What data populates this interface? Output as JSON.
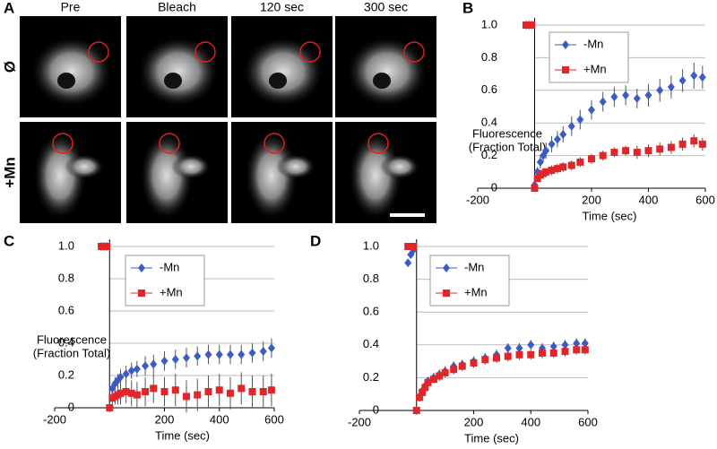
{
  "image_panel": {
    "label": "A",
    "columns": [
      "Pre",
      "Bleach",
      "120 sec",
      "300 sec"
    ],
    "rows": [
      "Ø",
      "+Mn"
    ]
  },
  "chart_data": [
    {
      "type": "scatter",
      "label": "B",
      "xlabel": "Time (sec)",
      "ylabel": [
        "Fluorescence",
        "(Fraction Total)"
      ],
      "x": [
        -30,
        -20,
        -10,
        0,
        10,
        20,
        30,
        40,
        60,
        80,
        100,
        130,
        160,
        200,
        240,
        280,
        320,
        360,
        400,
        440,
        480,
        520,
        560,
        590
      ],
      "xlim": [
        -200,
        600
      ],
      "xticks": [
        -200,
        200,
        400,
        600
      ],
      "ylim": [
        0,
        1
      ],
      "yticks": [
        0,
        0.2,
        0.4,
        0.6,
        0.8,
        {
          "value": 1,
          "label": "1.0"
        }
      ],
      "grid": true,
      "series": [
        {
          "name": "-Mn",
          "color": "#3b5cc4",
          "marker": "diamond",
          "values": [
            1,
            1,
            1,
            0.02,
            0.1,
            0.16,
            0.2,
            0.23,
            0.27,
            0.3,
            0.33,
            0.38,
            0.42,
            0.48,
            0.53,
            0.56,
            0.57,
            0.55,
            0.57,
            0.6,
            0.62,
            0.66,
            0.69,
            0.68
          ],
          "errors": [
            0.02,
            0.02,
            0.02,
            0.02,
            0.03,
            0.04,
            0.04,
            0.05,
            0.05,
            0.05,
            0.05,
            0.06,
            0.06,
            0.06,
            0.06,
            0.06,
            0.06,
            0.06,
            0.07,
            0.07,
            0.07,
            0.07,
            0.08,
            0.07
          ]
        },
        {
          "name": "+Mn",
          "color": "#e0262a",
          "marker": "square",
          "values": [
            1,
            1,
            1,
            0,
            0.06,
            0.08,
            0.09,
            0.1,
            0.11,
            0.12,
            0.13,
            0.14,
            0.16,
            0.18,
            0.2,
            0.22,
            0.23,
            0.22,
            0.23,
            0.24,
            0.25,
            0.27,
            0.29,
            0.27
          ],
          "errors": [
            0.02,
            0.02,
            0.02,
            0.01,
            0.02,
            0.02,
            0.02,
            0.02,
            0.03,
            0.03,
            0.03,
            0.03,
            0.03,
            0.03,
            0.03,
            0.03,
            0.03,
            0.04,
            0.04,
            0.04,
            0.04,
            0.04,
            0.04,
            0.04
          ]
        }
      ]
    },
    {
      "type": "scatter",
      "label": "C",
      "xlabel": "Time (sec)",
      "ylabel": [
        "Fluorescence",
        "(Fraction Total)"
      ],
      "x": [
        -30,
        -20,
        -10,
        0,
        10,
        20,
        30,
        40,
        60,
        80,
        100,
        130,
        160,
        200,
        240,
        280,
        320,
        360,
        400,
        440,
        480,
        520,
        560,
        590
      ],
      "xlim": [
        -200,
        600
      ],
      "xticks": [
        -200,
        200,
        400,
        600
      ],
      "ylim": [
        0,
        1
      ],
      "yticks": [
        0,
        0.2,
        0.4,
        0.6,
        0.8,
        {
          "value": 1,
          "label": "1.0"
        }
      ],
      "grid": true,
      "series": [
        {
          "name": "-Mn",
          "color": "#3b5cc4",
          "marker": "diamond",
          "values": [
            1,
            1,
            1,
            0,
            0.12,
            0.15,
            0.17,
            0.19,
            0.21,
            0.23,
            0.24,
            0.26,
            0.27,
            0.29,
            0.3,
            0.31,
            0.32,
            0.33,
            0.33,
            0.33,
            0.33,
            0.34,
            0.35,
            0.37
          ],
          "errors": [
            0.02,
            0.02,
            0.02,
            0.01,
            0.03,
            0.04,
            0.04,
            0.05,
            0.05,
            0.05,
            0.05,
            0.06,
            0.06,
            0.06,
            0.06,
            0.06,
            0.06,
            0.06,
            0.06,
            0.06,
            0.06,
            0.06,
            0.06,
            0.06
          ]
        },
        {
          "name": "+Mn",
          "color": "#e0262a",
          "marker": "square",
          "values": [
            1,
            1,
            1,
            0,
            0.06,
            0.07,
            0.08,
            0.09,
            0.1,
            0.09,
            0.08,
            0.1,
            0.12,
            0.1,
            0.11,
            0.07,
            0.08,
            0.1,
            0.11,
            0.09,
            0.12,
            0.1,
            0.1,
            0.11
          ],
          "errors": [
            0.02,
            0.02,
            0.02,
            0.01,
            0.04,
            0.05,
            0.06,
            0.07,
            0.07,
            0.08,
            0.08,
            0.09,
            0.09,
            0.09,
            0.1,
            0.1,
            0.1,
            0.1,
            0.1,
            0.1,
            0.1,
            0.1,
            0.1,
            0.1
          ]
        }
      ]
    },
    {
      "type": "scatter",
      "label": "D",
      "xlabel": "Time (sec)",
      "x": [
        -30,
        -20,
        -10,
        0,
        10,
        20,
        30,
        40,
        60,
        80,
        100,
        130,
        160,
        200,
        240,
        280,
        320,
        360,
        400,
        440,
        480,
        520,
        560,
        590
      ],
      "xlim": [
        -200,
        600
      ],
      "xticks": [
        -200,
        200,
        400,
        600
      ],
      "ylim": [
        0,
        1
      ],
      "yticks": [
        0,
        0.2,
        0.4,
        0.6,
        0.8,
        {
          "value": 1,
          "label": "1.0"
        }
      ],
      "grid": true,
      "series": [
        {
          "name": "-Mn",
          "color": "#3b5cc4",
          "marker": "diamond",
          "values": [
            0.9,
            0.95,
            0.98,
            0,
            0.08,
            0.12,
            0.15,
            0.18,
            0.2,
            0.22,
            0.24,
            0.27,
            0.28,
            0.3,
            0.32,
            0.34,
            0.38,
            0.38,
            0.4,
            0.38,
            0.39,
            0.4,
            0.41,
            0.41
          ],
          "errors": [
            0.02,
            0.02,
            0.02,
            0.01,
            0.02,
            0.02,
            0.02,
            0.02,
            0.03,
            0.03,
            0.03,
            0.03,
            0.03,
            0.03,
            0.03,
            0.03,
            0.03,
            0.03,
            0.03,
            0.03,
            0.03,
            0.03,
            0.03,
            0.03
          ]
        },
        {
          "name": "+Mn",
          "color": "#e0262a",
          "marker": "square",
          "values": [
            1,
            1,
            1,
            0,
            0.08,
            0.11,
            0.14,
            0.17,
            0.19,
            0.21,
            0.23,
            0.25,
            0.27,
            0.29,
            0.31,
            0.32,
            0.33,
            0.34,
            0.34,
            0.35,
            0.35,
            0.36,
            0.37,
            0.37
          ],
          "errors": [
            0.02,
            0.02,
            0.02,
            0.01,
            0.02,
            0.02,
            0.02,
            0.02,
            0.02,
            0.03,
            0.03,
            0.03,
            0.03,
            0.03,
            0.03,
            0.03,
            0.03,
            0.03,
            0.03,
            0.03,
            0.03,
            0.03,
            0.03,
            0.03
          ]
        }
      ]
    }
  ]
}
